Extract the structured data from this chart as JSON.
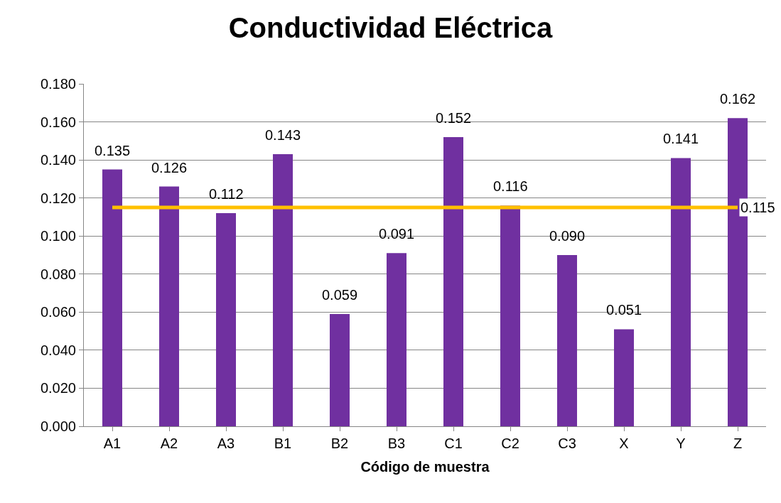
{
  "chart_data": {
    "type": "bar",
    "title": "Conductividad Eléctrica",
    "xlabel": "Código de muestra",
    "categories": [
      "A1",
      "A2",
      "A3",
      "B1",
      "B2",
      "B3",
      "C1",
      "C2",
      "C3",
      "X",
      "Y",
      "Z"
    ],
    "values": [
      0.135,
      0.126,
      0.112,
      0.143,
      0.059,
      0.091,
      0.152,
      0.116,
      0.09,
      0.051,
      0.141,
      0.162
    ],
    "value_labels": [
      "0.135",
      "0.126",
      "0.112",
      "0.143",
      "0.059",
      "0.091",
      "0.152",
      "0.116",
      "0.090",
      "0.051",
      "0.141",
      "0.162"
    ],
    "color": "#7030a0",
    "ylim": [
      0,
      0.18
    ],
    "yticks": [
      {
        "value": 0,
        "label": "0.000"
      },
      {
        "value": 0.02,
        "label": "0.020"
      },
      {
        "value": 0.04,
        "label": "0.040"
      },
      {
        "value": 0.06,
        "label": "0.060"
      },
      {
        "value": 0.08,
        "label": "0.080"
      },
      {
        "value": 0.1,
        "label": "0.100"
      },
      {
        "value": 0.12,
        "label": "0.120"
      },
      {
        "value": 0.14,
        "label": "0.140"
      },
      {
        "value": 0.16,
        "label": "0.160"
      },
      {
        "value": 0.18,
        "label": "0.180"
      }
    ],
    "ref_lines": [
      {
        "axis": "y",
        "value": 0.115,
        "label": "0.115",
        "color": "#ffc000",
        "line_style": "solid"
      }
    ],
    "grid": "y",
    "legend": false
  }
}
